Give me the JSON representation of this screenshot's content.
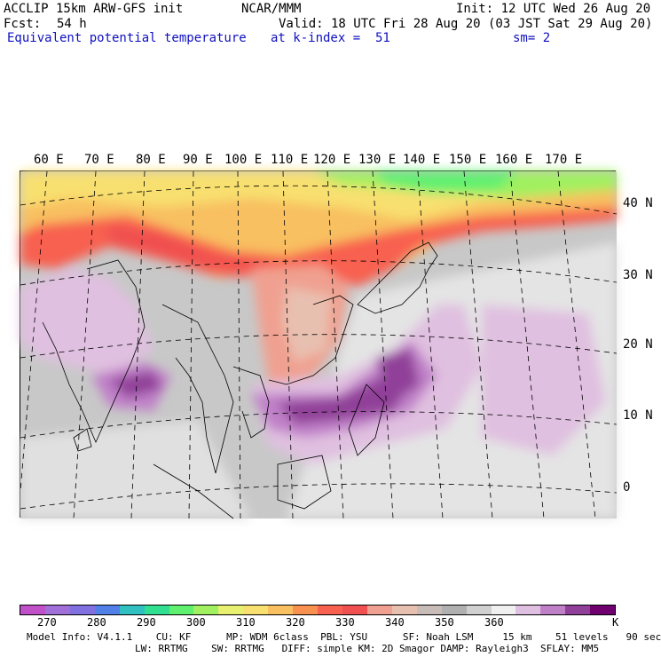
{
  "header": {
    "model": "ACCLIP 15km ARW-GFS init",
    "org": "NCAR/MMM",
    "init": "Init: 12 UTC Wed 26 Aug 20",
    "fcst_label": "Fcst:",
    "fcst_value": "54 h",
    "valid": "Valid: 18 UTC Fri 28 Aug 20 (03 JST Sat 29 Aug 20)",
    "field": "Equivalent potential temperature",
    "level": "at k-index =  51",
    "smooth": "sm= 2"
  },
  "map": {
    "lon_labels": [
      "60 E",
      "70 E",
      "80 E",
      "90 E",
      "100 E",
      "110 E",
      "120 E",
      "130 E",
      "140 E",
      "150 E",
      "160 E",
      "170 E"
    ],
    "lat_labels": [
      "40 N",
      "30 N",
      "20 N",
      "10 N",
      "0"
    ]
  },
  "colorbar": {
    "colors": [
      "#c050c8",
      "#a070d8",
      "#8070e0",
      "#5080e8",
      "#30c0c0",
      "#30e090",
      "#60f070",
      "#a0f060",
      "#e8f070",
      "#f8e070",
      "#f8c060",
      "#f89050",
      "#f86050",
      "#f05050",
      "#f0a090",
      "#e8c0b0",
      "#c8bcb8",
      "#b0b0b0",
      "#d0d0d0",
      "#f0f0f0",
      "#e0c0e0",
      "#c080c8",
      "#904098",
      "#700070"
    ],
    "labels": [
      "270",
      "280",
      "290",
      "300",
      "310",
      "320",
      "330",
      "340",
      "350",
      "360"
    ],
    "unit": "K"
  },
  "footer": {
    "line1": "Model Info: V4.1.1    CU: KF      MP: WDM 6class  PBL: YSU      SF: Noah LSM     15 km    51 levels   90 sec",
    "line2": "LW: RRTMG    SW: RRTMG   DIFF: simple KM: 2D Smagor DAMP: Rayleigh3  SFLAY: MM5"
  }
}
